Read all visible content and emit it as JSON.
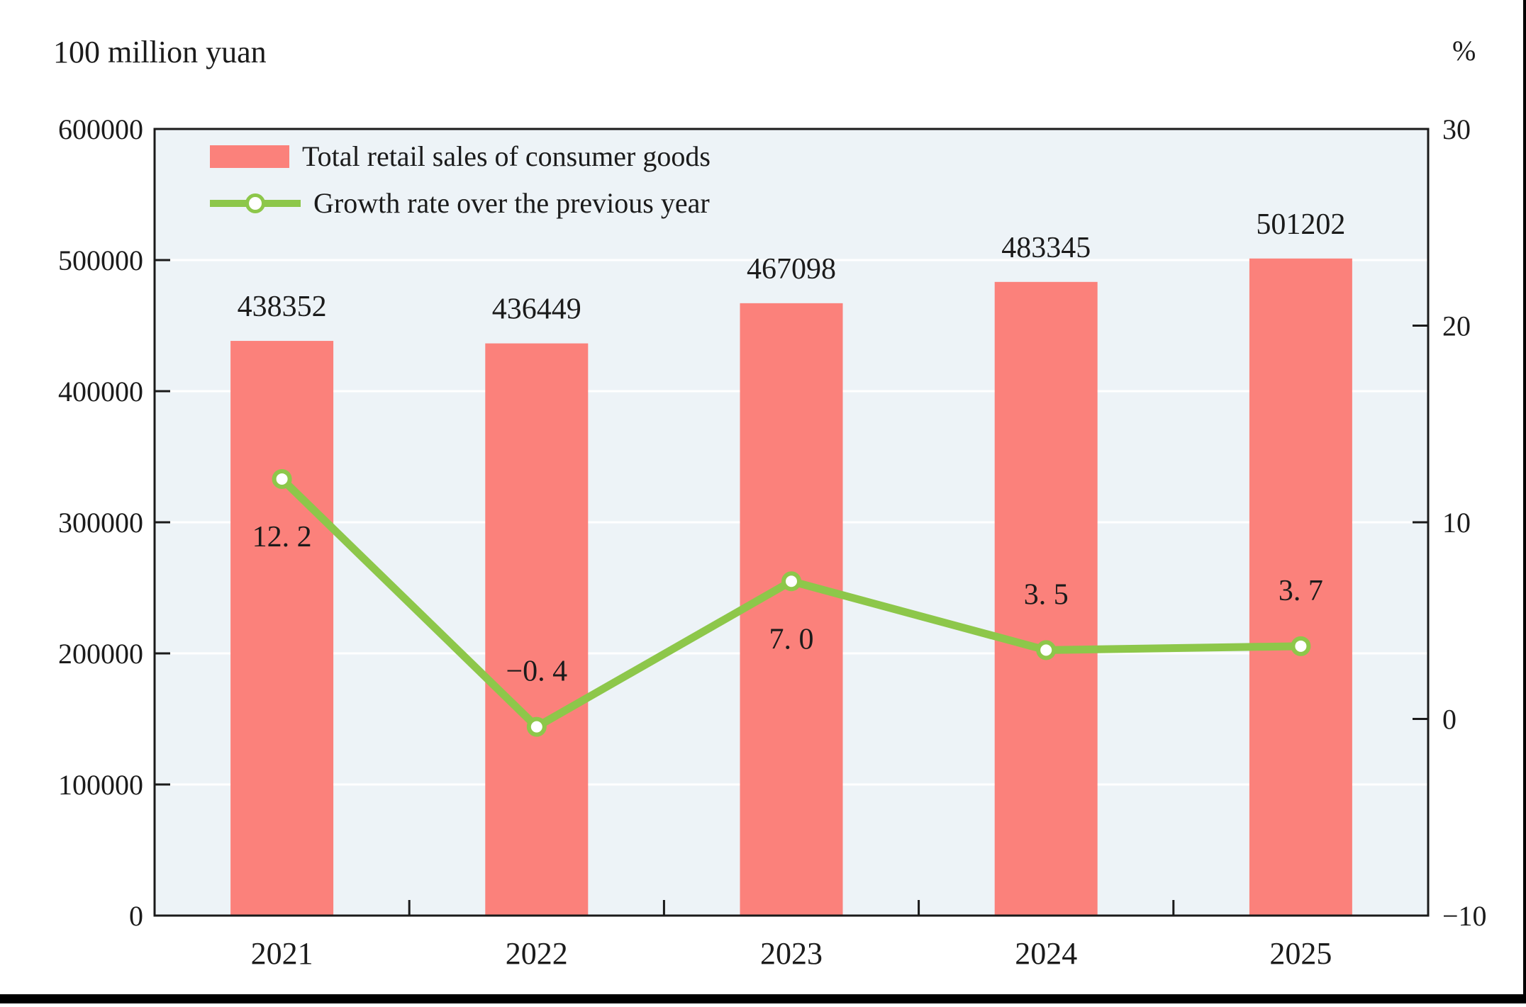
{
  "chart_data": {
    "type": "bar+line combo",
    "categories": [
      "2021",
      "2022",
      "2023",
      "2024",
      "2025"
    ],
    "series": [
      {
        "name": "Total retail sales of consumer goods",
        "type": "bar",
        "axis": "left",
        "color": "#fb817b",
        "values": [
          438352,
          436449,
          467098,
          483345,
          501202
        ],
        "labels": [
          "438352",
          "436449",
          "467098",
          "483345",
          "501202"
        ]
      },
      {
        "name": "Growth rate over the previous year",
        "type": "line",
        "axis": "right",
        "color": "#8dc74a",
        "marker_fill": "#ffffff",
        "values": [
          12.2,
          -0.4,
          7.0,
          3.5,
          3.7
        ],
        "labels": [
          "12. 2",
          "−0. 4",
          "7. 0",
          "3. 5",
          "3. 7"
        ],
        "label_positions": [
          "below",
          "above",
          "below",
          "above",
          "above"
        ]
      }
    ],
    "left_axis": {
      "title": "100 million yuan",
      "min": 0,
      "max": 600000,
      "tick_step": 100000,
      "tick_labels": [
        "0",
        "100000",
        "200000",
        "300000",
        "400000",
        "500000",
        "600000"
      ]
    },
    "right_axis": {
      "title": "%",
      "min": -10,
      "max": 30,
      "tick_step": 10,
      "tick_labels": [
        "−10",
        "0",
        "10",
        "20",
        "30"
      ]
    },
    "legend_position": "top-left",
    "grid": true,
    "plot_bg": "#edf3f7",
    "grid_color": "#ffffff",
    "frame_color": "#1a1a1a",
    "text_color": "#1b1b1b"
  }
}
